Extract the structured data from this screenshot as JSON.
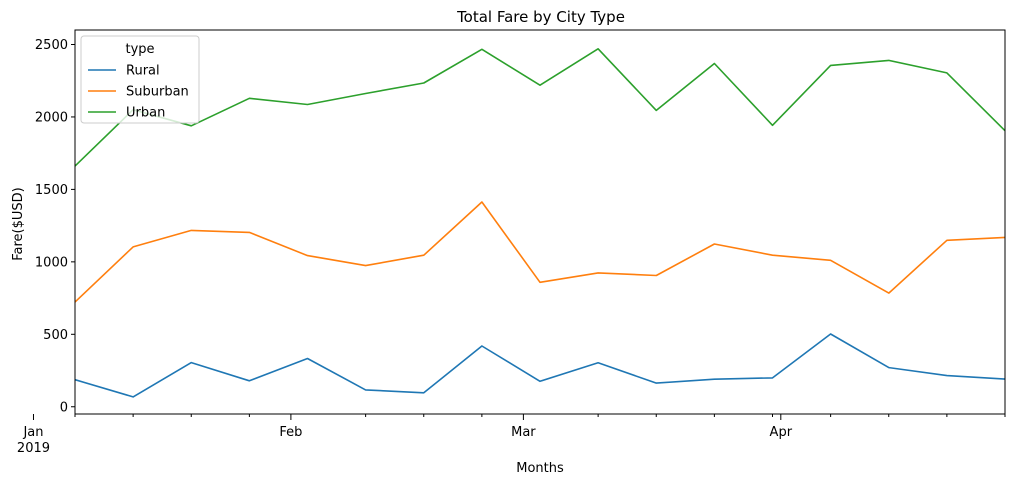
{
  "chart_data": {
    "type": "line",
    "title": "Total Fare by City Type",
    "xlabel": "Months",
    "ylabel": "Fare($USD)",
    "x": [
      "2019-01-06",
      "2019-01-13",
      "2019-01-20",
      "2019-01-27",
      "2019-02-03",
      "2019-02-10",
      "2019-02-17",
      "2019-02-24",
      "2019-03-03",
      "2019-03-10",
      "2019-03-17",
      "2019-03-24",
      "2019-03-31",
      "2019-04-07",
      "2019-04-14",
      "2019-04-21",
      "2019-04-28"
    ],
    "x_ticks": [
      {
        "date": "2019-01-01",
        "label": "Jan",
        "sublabel": "2019"
      },
      {
        "date": "2019-02-01",
        "label": "Feb",
        "sublabel": ""
      },
      {
        "date": "2019-03-01",
        "label": "Mar",
        "sublabel": ""
      },
      {
        "date": "2019-04-01",
        "label": "Apr",
        "sublabel": ""
      }
    ],
    "x_minor_ticks": [
      "2019-01-06",
      "2019-01-13",
      "2019-01-20",
      "2019-01-27",
      "2019-02-10",
      "2019-02-17",
      "2019-02-24",
      "2019-03-10",
      "2019-03-17",
      "2019-03-24",
      "2019-03-31",
      "2019-04-07",
      "2019-04-14",
      "2019-04-21",
      "2019-04-28"
    ],
    "xlim": [
      "2019-01-06",
      "2019-04-28"
    ],
    "ylim": [
      -50,
      2600
    ],
    "y_ticks": [
      0,
      500,
      1000,
      1500,
      2000,
      2500
    ],
    "grid": false,
    "legend": {
      "title": "type",
      "placement": "top-left"
    },
    "series": [
      {
        "name": "Rural",
        "color": "#1f77b4",
        "values": [
          187,
          68,
          305,
          179,
          333,
          116,
          96,
          419,
          176,
          303,
          163,
          190,
          199,
          502,
          270,
          215,
          191
        ]
      },
      {
        "name": "Suburban",
        "color": "#ff7f0e",
        "values": [
          722,
          1103,
          1217,
          1203,
          1043,
          974,
          1046,
          1413,
          859,
          924,
          906,
          1123,
          1046,
          1011,
          784,
          1149,
          1169
        ]
      },
      {
        "name": "Urban",
        "color": "#2ca02c",
        "values": [
          1661,
          2050,
          1939,
          2129,
          2086,
          2162,
          2234,
          2467,
          2219,
          2470,
          2045,
          2369,
          1942,
          2356,
          2390,
          2304,
          1905
        ]
      }
    ]
  }
}
